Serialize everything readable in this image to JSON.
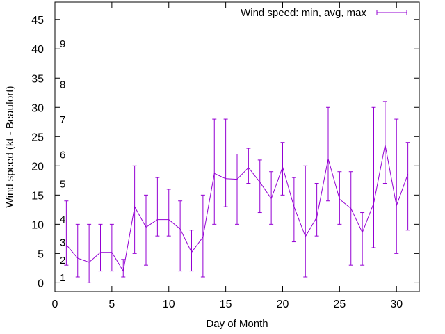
{
  "chart_data": {
    "type": "line",
    "title": "",
    "xlabel": "Day of Month",
    "ylabel": "Wind speed (kt - Beaufort)",
    "xlim": [
      0,
      32
    ],
    "ylim": [
      -1.5,
      48
    ],
    "xticks": [
      0,
      5,
      10,
      15,
      20,
      25,
      30
    ],
    "yticks": [
      0,
      5,
      10,
      15,
      20,
      25,
      30,
      35,
      40,
      45
    ],
    "grid": false,
    "legend": {
      "position": "top-right",
      "label": "Wind speed: min, avg, max"
    },
    "series": [
      {
        "name": "Wind speed: min, avg, max",
        "color": "#9400d3",
        "x": [
          1,
          2,
          3,
          4,
          5,
          6,
          7,
          8,
          9,
          10,
          11,
          12,
          13,
          14,
          15,
          16,
          17,
          18,
          19,
          20,
          21,
          22,
          23,
          24,
          25,
          26,
          27,
          28,
          29,
          30,
          31
        ],
        "avg": [
          6.5,
          4.2,
          3.5,
          5.2,
          5.2,
          2,
          13,
          9.5,
          10.8,
          10.8,
          9.2,
          5.2,
          7.8,
          18.7,
          17.8,
          17.7,
          19.7,
          17.2,
          14.4,
          19.8,
          13,
          7.9,
          11.2,
          21.2,
          14.3,
          12.7,
          8.6,
          13.6,
          23.6,
          13.2,
          18.6
        ],
        "min": [
          3,
          1,
          0,
          2,
          2,
          1,
          5,
          3,
          8,
          8,
          2,
          2,
          1,
          10,
          13,
          10,
          17,
          12,
          10,
          15,
          7,
          1,
          8,
          14,
          10,
          3,
          3,
          6,
          17,
          5,
          9
        ],
        "max": [
          14,
          10,
          10,
          10,
          10,
          4,
          20,
          15,
          18,
          16,
          14,
          9,
          15,
          28,
          28,
          22,
          23,
          21,
          19,
          24,
          18,
          20,
          17,
          30,
          19,
          19,
          12,
          30,
          31,
          28,
          24
        ]
      }
    ],
    "annotations": [
      {
        "text": "1",
        "y": 1
      },
      {
        "text": "2",
        "y": 4
      },
      {
        "text": "3",
        "y": 7
      },
      {
        "text": "4",
        "y": 11
      },
      {
        "text": "5",
        "y": 17
      },
      {
        "text": "6",
        "y": 22
      },
      {
        "text": "7",
        "y": 28
      },
      {
        "text": "8",
        "y": 34
      },
      {
        "text": "9",
        "y": 41
      }
    ]
  }
}
